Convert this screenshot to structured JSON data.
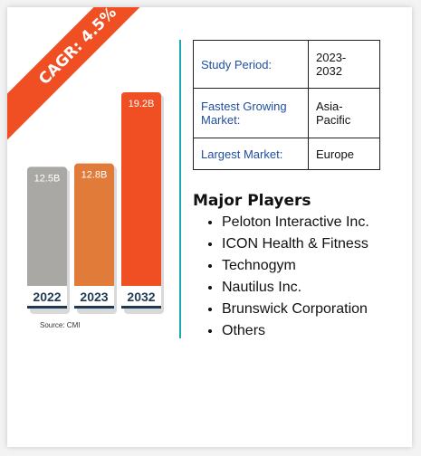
{
  "badge": {
    "text": "CAGR: 4.5%"
  },
  "chart_data": {
    "type": "bar",
    "categories": [
      "2022",
      "2023",
      "2032"
    ],
    "values": [
      12.5,
      12.8,
      19.2
    ],
    "data_labels": [
      "12.5B",
      "12.8B",
      "19.2B"
    ],
    "colors": [
      "#a9a8a5",
      "#e07b39",
      "#f04e23"
    ],
    "axis_color": "#1d3a52",
    "title": "",
    "xlabel": "",
    "ylabel": ""
  },
  "source": "Source: CMI",
  "info_table": [
    {
      "key": "Study Period:",
      "value": "2023-2032"
    },
    {
      "key": "Fastest Growing Market:",
      "value": "Asia-Pacific"
    },
    {
      "key": "Largest Market:",
      "value": "Europe"
    }
  ],
  "players": {
    "heading": "Major Players",
    "items": [
      "Peloton Interactive Inc.",
      "ICON Health & Fitness",
      "Technogym",
      "Nautilus Inc.",
      "Brunswick Corporation",
      "Others"
    ]
  }
}
